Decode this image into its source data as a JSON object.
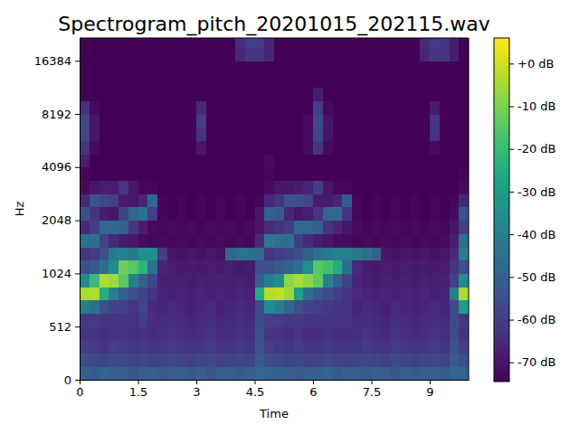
{
  "chart_data": {
    "type": "heatmap",
    "title": "Spectrogram_pitch_20201015_202115.wav",
    "x_label": "Time",
    "y_label": "Hz",
    "color": "viridis",
    "log": "y",
    "xlim": [
      0,
      10
    ],
    "ylim": [
      0,
      22050
    ],
    "xticks": [
      0,
      1.5,
      3,
      4.5,
      6,
      7.5,
      9
    ],
    "yticks": [
      0,
      512,
      1024,
      2048,
      4096,
      8192,
      16384
    ],
    "x_bins": [
      0,
      0.25,
      0.5,
      0.75,
      1,
      1.25,
      1.5,
      1.75,
      2,
      2.25,
      2.5,
      2.75,
      3,
      3.25,
      3.5,
      3.75,
      4,
      4.25,
      4.5,
      4.75,
      5,
      5.25,
      5.5,
      5.75,
      6,
      6.25,
      6.5,
      6.75,
      7,
      7.25,
      7.5,
      7.75,
      8,
      8.25,
      8.5,
      8.75,
      9,
      9.25,
      9.5,
      9.75,
      10
    ],
    "y_bins": [
      0,
      128,
      256,
      384,
      512,
      609,
      724,
      861,
      1024,
      1218,
      1448,
      1722,
      2048,
      2436,
      2896,
      3444,
      4096,
      4871,
      5793,
      6889,
      8192,
      9742,
      11585,
      13777,
      16384,
      19484,
      22050
    ],
    "z": [
      [
        -50,
        -52,
        -49,
        -51,
        -50,
        -53,
        -51,
        -50,
        -52,
        -51,
        -50,
        -52,
        -51,
        -53,
        -50,
        -51,
        -52,
        -50,
        -48,
        -49,
        -50,
        -51,
        -52,
        -50,
        -51,
        -49,
        -52,
        -50,
        -51,
        -52,
        -50,
        -51,
        -53,
        -50,
        -52,
        -51,
        -50,
        -52,
        -48,
        -49
      ],
      [
        -56,
        -57,
        -58,
        -56,
        -57,
        -58,
        -57,
        -59,
        -58,
        -57,
        -58,
        -59,
        -58,
        -57,
        -59,
        -58,
        -57,
        -58,
        -52,
        -56,
        -57,
        -58,
        -57,
        -59,
        -58,
        -57,
        -58,
        -59,
        -58,
        -57,
        -58,
        -59,
        -57,
        -58,
        -59,
        -58,
        -57,
        -58,
        -52,
        -56
      ],
      [
        -60,
        -61,
        -62,
        -60,
        -61,
        -62,
        -61,
        -63,
        -62,
        -61,
        -62,
        -63,
        -62,
        -61,
        -63,
        -62,
        -61,
        -62,
        -54,
        -60,
        -61,
        -62,
        -61,
        -63,
        -62,
        -61,
        -62,
        -63,
        -62,
        -61,
        -62,
        -63,
        -61,
        -62,
        -63,
        -62,
        -61,
        -62,
        -54,
        -60
      ],
      [
        -62,
        -63,
        -64,
        -62,
        -63,
        -64,
        -63,
        -65,
        -64,
        -63,
        -64,
        -65,
        -64,
        -63,
        -65,
        -64,
        -63,
        -64,
        -55,
        -62,
        -63,
        -64,
        -63,
        -65,
        -64,
        -63,
        -64,
        -65,
        -64,
        -63,
        -64,
        -65,
        -63,
        -64,
        -65,
        -64,
        -63,
        -64,
        -56,
        -62
      ],
      [
        -61,
        -61,
        -62,
        -62,
        -62,
        -63,
        -60,
        -64,
        -65,
        -64,
        -65,
        -66,
        -65,
        -64,
        -66,
        -65,
        -64,
        -65,
        -56,
        -60,
        -60,
        -61,
        -61,
        -62,
        -62,
        -62,
        -63,
        -63,
        -65,
        -64,
        -65,
        -66,
        -64,
        -65,
        -66,
        -65,
        -64,
        -65,
        -56,
        -61
      ],
      [
        -40,
        -45,
        -55,
        -58,
        -60,
        -62,
        -58,
        -65,
        -66,
        -65,
        -66,
        -67,
        -66,
        -65,
        -67,
        -66,
        -65,
        -66,
        -56,
        -35,
        -40,
        -48,
        -55,
        -58,
        -60,
        -61,
        -62,
        -63,
        -66,
        -65,
        -66,
        -67,
        -65,
        -66,
        -67,
        -66,
        -65,
        -66,
        -56,
        -30
      ],
      [
        -5,
        -4,
        -25,
        -40,
        -50,
        -55,
        -58,
        -62,
        -66,
        -67,
        -66,
        -67,
        -66,
        -67,
        -66,
        -67,
        -66,
        -67,
        -25,
        -3,
        -2,
        -6,
        -30,
        -45,
        -52,
        -56,
        -60,
        -62,
        -65,
        -66,
        -67,
        -66,
        -67,
        -66,
        -67,
        -66,
        -67,
        -66,
        -40,
        -5
      ],
      [
        -35,
        -20,
        -4,
        -6,
        -15,
        -40,
        -50,
        -58,
        -67,
        -68,
        -67,
        -68,
        -67,
        -68,
        -67,
        -68,
        -67,
        -68,
        -50,
        -40,
        -35,
        -8,
        -5,
        -8,
        -14,
        -40,
        -50,
        -58,
        -66,
        -67,
        -68,
        -67,
        -68,
        -67,
        -68,
        -67,
        -68,
        -67,
        -60,
        -35
      ],
      [
        -55,
        -52,
        -45,
        -35,
        -12,
        -15,
        -22,
        -45,
        -66,
        -68,
        -69,
        -68,
        -69,
        -68,
        -69,
        -68,
        -69,
        -68,
        -55,
        -55,
        -52,
        -50,
        -45,
        -35,
        -15,
        -18,
        -25,
        -45,
        -65,
        -68,
        -69,
        -68,
        -69,
        -68,
        -69,
        -68,
        -69,
        -68,
        -62,
        -55
      ],
      [
        -62,
        -60,
        -55,
        -42,
        -40,
        -42,
        -35,
        -35,
        -60,
        -70,
        -71,
        -70,
        -71,
        -70,
        -71,
        -48,
        -44,
        -45,
        -48,
        -62,
        -60,
        -58,
        -55,
        -50,
        -44,
        -42,
        -40,
        -40,
        -42,
        -45,
        -50,
        -70,
        -71,
        -70,
        -71,
        -70,
        -71,
        -70,
        -65,
        -40
      ],
      [
        -45,
        -45,
        -58,
        -65,
        -68,
        -70,
        -72,
        -73,
        -72,
        -73,
        -72,
        -73,
        -72,
        -73,
        -72,
        -73,
        -72,
        -73,
        -65,
        -42,
        -45,
        -45,
        -60,
        -65,
        -68,
        -70,
        -72,
        -72,
        -73,
        -72,
        -73,
        -72,
        -73,
        -72,
        -73,
        -72,
        -73,
        -72,
        -68,
        -45
      ],
      [
        -65,
        -60,
        -48,
        -48,
        -50,
        -62,
        -68,
        -72,
        -73,
        -72,
        -73,
        -72,
        -73,
        -72,
        -73,
        -72,
        -73,
        -72,
        -70,
        -65,
        -62,
        -60,
        -48,
        -48,
        -50,
        -62,
        -66,
        -70,
        -72,
        -73,
        -72,
        -73,
        -72,
        -73,
        -72,
        -73,
        -72,
        -73,
        -70,
        -60
      ],
      [
        -55,
        -62,
        -68,
        -70,
        -58,
        -48,
        -45,
        -60,
        -73,
        -74,
        -73,
        -74,
        -73,
        -74,
        -73,
        -74,
        -73,
        -74,
        -70,
        -50,
        -52,
        -66,
        -70,
        -68,
        -62,
        -48,
        -48,
        -62,
        -73,
        -74,
        -73,
        -74,
        -73,
        -74,
        -73,
        -74,
        -73,
        -74,
        -72,
        -55
      ],
      [
        -65,
        -55,
        -58,
        -60,
        -68,
        -70,
        -66,
        -48,
        -73,
        -74,
        -73,
        -74,
        -73,
        -74,
        -73,
        -74,
        -73,
        -74,
        -73,
        -66,
        -62,
        -55,
        -55,
        -58,
        -68,
        -68,
        -66,
        -52,
        -73,
        -74,
        -73,
        -74,
        -73,
        -74,
        -73,
        -74,
        -73,
        -74,
        -73,
        -66
      ],
      [
        -72,
        -70,
        -68,
        -68,
        -62,
        -70,
        -73,
        -73,
        -74,
        -74,
        -74,
        -74,
        -74,
        -74,
        -74,
        -74,
        -74,
        -74,
        -74,
        -72,
        -70,
        -70,
        -68,
        -66,
        -60,
        -70,
        -73,
        -73,
        -74,
        -74,
        -74,
        -74,
        -74,
        -74,
        -74,
        -74,
        -74,
        -74,
        -74,
        -72
      ],
      [
        -73,
        -74,
        -74,
        -74,
        -74,
        -74,
        -74,
        -74,
        -74,
        -74,
        -74,
        -74,
        -74,
        -74,
        -74,
        -74,
        -74,
        -74,
        -74,
        -73,
        -74,
        -74,
        -74,
        -74,
        -74,
        -74,
        -74,
        -74,
        -74,
        -74,
        -74,
        -74,
        -74,
        -74,
        -74,
        -74,
        -74,
        -74,
        -74,
        -73
      ],
      [
        -68,
        -74,
        -74,
        -74,
        -74,
        -74,
        -74,
        -74,
        -74,
        -74,
        -74,
        -74,
        -74,
        -74,
        -74,
        -74,
        -74,
        -74,
        -74,
        -72,
        -74,
        -74,
        -74,
        -74,
        -74,
        -74,
        -74,
        -74,
        -74,
        -74,
        -74,
        -74,
        -74,
        -74,
        -74,
        -74,
        -74,
        -74,
        -74,
        -74
      ],
      [
        -62,
        -72,
        -74,
        -74,
        -74,
        -74,
        -74,
        -74,
        -74,
        -74,
        -74,
        -74,
        -70,
        -74,
        -74,
        -74,
        -74,
        -74,
        -74,
        -74,
        -74,
        -74,
        -74,
        -72,
        -62,
        -72,
        -74,
        -74,
        -74,
        -74,
        -74,
        -74,
        -74,
        -74,
        -74,
        -74,
        -72,
        -74,
        -74,
        -74
      ],
      [
        -58,
        -70,
        -74,
        -74,
        -74,
        -74,
        -74,
        -74,
        -74,
        -74,
        -74,
        -74,
        -62,
        -74,
        -74,
        -74,
        -74,
        -74,
        -74,
        -74,
        -74,
        -74,
        -74,
        -72,
        -58,
        -70,
        -74,
        -74,
        -74,
        -74,
        -74,
        -74,
        -74,
        -74,
        -74,
        -74,
        -62,
        -74,
        -74,
        -74
      ],
      [
        -58,
        -70,
        -74,
        -74,
        -74,
        -74,
        -74,
        -74,
        -74,
        -74,
        -74,
        -74,
        -60,
        -74,
        -74,
        -74,
        -74,
        -74,
        -74,
        -74,
        -74,
        -74,
        -74,
        -72,
        -57,
        -70,
        -74,
        -74,
        -74,
        -74,
        -74,
        -74,
        -74,
        -74,
        -74,
        -74,
        -62,
        -74,
        -74,
        -74
      ],
      [
        -63,
        -72,
        -74,
        -74,
        -74,
        -74,
        -74,
        -74,
        -74,
        -74,
        -74,
        -74,
        -65,
        -74,
        -74,
        -74,
        -74,
        -74,
        -74,
        -74,
        -74,
        -74,
        -74,
        -74,
        -60,
        -72,
        -74,
        -74,
        -74,
        -74,
        -74,
        -74,
        -74,
        -74,
        -74,
        -74,
        -68,
        -74,
        -74,
        -74
      ],
      [
        -74,
        -74,
        -74,
        -74,
        -74,
        -74,
        -74,
        -74,
        -74,
        -74,
        -74,
        -74,
        -74,
        -74,
        -74,
        -74,
        -74,
        -74,
        -74,
        -74,
        -74,
        -74,
        -74,
        -74,
        -68,
        -74,
        -74,
        -74,
        -74,
        -74,
        -74,
        -74,
        -74,
        -74,
        -74,
        -74,
        -74,
        -74,
        -74,
        -74
      ],
      [
        -74,
        -74,
        -74,
        -74,
        -74,
        -74,
        -74,
        -74,
        -74,
        -74,
        -74,
        -74,
        -74,
        -74,
        -74,
        -74,
        -74,
        -74,
        -74,
        -74,
        -74,
        -74,
        -74,
        -74,
        -74,
        -74,
        -74,
        -74,
        -74,
        -74,
        -74,
        -74,
        -74,
        -74,
        -74,
        -74,
        -74,
        -74,
        -74,
        -74
      ],
      [
        -74,
        -74,
        -74,
        -74,
        -74,
        -74,
        -74,
        -74,
        -74,
        -74,
        -74,
        -74,
        -74,
        -74,
        -74,
        -74,
        -74,
        -74,
        -74,
        -74,
        -74,
        -74,
        -74,
        -74,
        -74,
        -74,
        -74,
        -74,
        -74,
        -74,
        -74,
        -74,
        -74,
        -74,
        -74,
        -74,
        -74,
        -74,
        -74,
        -74
      ],
      [
        -74,
        -74,
        -74,
        -74,
        -74,
        -74,
        -74,
        -74,
        -74,
        -74,
        -74,
        -74,
        -74,
        -74,
        -74,
        -74,
        -66,
        -62,
        -62,
        -66,
        -74,
        -74,
        -74,
        -74,
        -74,
        -74,
        -74,
        -74,
        -74,
        -74,
        -74,
        -74,
        -74,
        -74,
        -74,
        -66,
        -62,
        -62,
        -68,
        -74
      ],
      [
        -74,
        -74,
        -74,
        -74,
        -74,
        -74,
        -74,
        -74,
        -74,
        -74,
        -74,
        -74,
        -74,
        -74,
        -74,
        -74,
        -64,
        -60,
        -61,
        -66,
        -74,
        -74,
        -74,
        -74,
        -74,
        -74,
        -74,
        -74,
        -74,
        -74,
        -74,
        -74,
        -74,
        -74,
        -74,
        -65,
        -61,
        -62,
        -68,
        -74
      ]
    ],
    "colorbar": {
      "range": [
        -74.5,
        6
      ],
      "ticks": [
        {
          "value": 0,
          "label": "+0 dB"
        },
        {
          "value": -10,
          "label": "-10 dB"
        },
        {
          "value": -20,
          "label": "-20 dB"
        },
        {
          "value": -30,
          "label": "-30 dB"
        },
        {
          "value": -40,
          "label": "-40 dB"
        },
        {
          "value": -50,
          "label": "-50 dB"
        },
        {
          "value": -60,
          "label": "-60 dB"
        },
        {
          "value": -70,
          "label": "-70 dB"
        }
      ]
    }
  }
}
